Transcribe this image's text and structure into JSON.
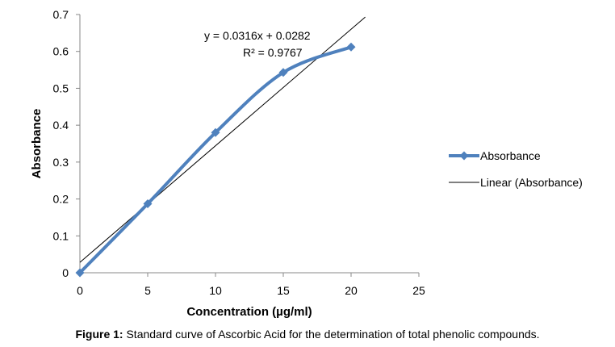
{
  "chart_data": {
    "type": "scatter",
    "x": [
      0,
      5,
      10,
      15,
      20
    ],
    "series": [
      {
        "name": "Absorbance",
        "values": [
          0,
          0.187,
          0.38,
          0.543,
          0.612
        ],
        "color": "#4f81bd",
        "style": "smoothed line with diamond markers"
      },
      {
        "name": "Linear (Absorbance)",
        "type": "trendline",
        "slope": 0.0316,
        "intercept": 0.0282,
        "color": "#000000"
      }
    ],
    "xlabel": "Concentration (µg/ml)",
    "ylabel": "Absorbance",
    "xlim": [
      0,
      25
    ],
    "ylim": [
      0,
      0.7
    ],
    "x_ticks": [
      "0",
      "5",
      "10",
      "15",
      "20",
      "25"
    ],
    "y_ticks": [
      "0",
      "0.1",
      "0.2",
      "0.3",
      "0.4",
      "0.5",
      "0.6",
      "0.7"
    ],
    "grid": false,
    "legend_position": "right",
    "annotations": {
      "equation": "y = 0.0316x + 0.0282",
      "r_squared": "R² = 0.9767"
    }
  },
  "caption": {
    "label": "Figure 1:",
    "text": " Standard curve of Ascorbic Acid for the determination of total phenolic compounds."
  }
}
